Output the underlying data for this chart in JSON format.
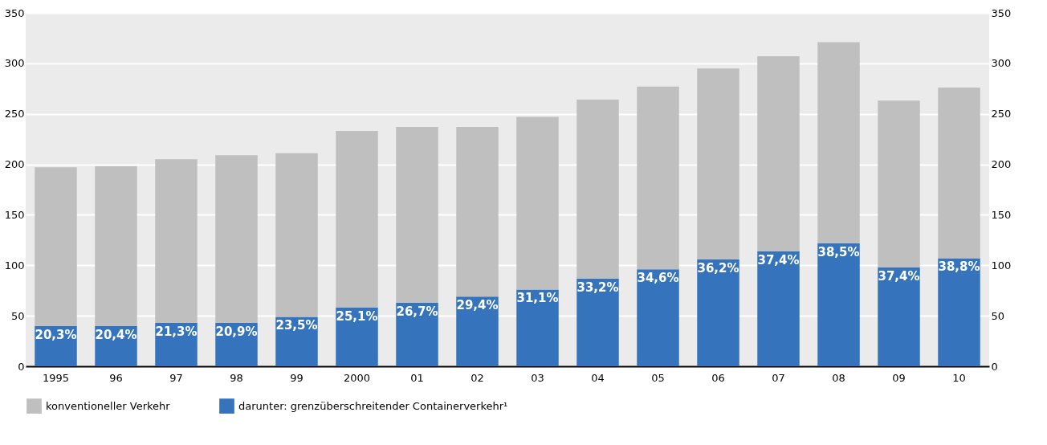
{
  "chart_data": {
    "type": "bar",
    "stacked": true,
    "categories": [
      "1995",
      "96",
      "97",
      "98",
      "99",
      "2000",
      "01",
      "02",
      "03",
      "04",
      "05",
      "06",
      "07",
      "08",
      "09",
      "10"
    ],
    "series": [
      {
        "name": "darunter: grenzüberschreitender Containerverkehr¹",
        "color": "#3574bc",
        "values": [
          40,
          40,
          43,
          43,
          49,
          58,
          63,
          69,
          76,
          87,
          96,
          106,
          114,
          122,
          98,
          107
        ]
      },
      {
        "name": "konventioneller Verkehr",
        "color": "#bfbfbf",
        "values": [
          157,
          158,
          162,
          166,
          162,
          175,
          174,
          168,
          171,
          177,
          181,
          189,
          193,
          199,
          165,
          169
        ]
      }
    ],
    "annotations": [
      {
        "text": "20,3%",
        "x": "1995",
        "y": 40
      },
      {
        "text": "20,4%",
        "x": "96",
        "y": 40
      },
      {
        "text": "21,3%",
        "x": "97",
        "y": 43
      },
      {
        "text": "20,9%",
        "x": "98",
        "y": 43
      },
      {
        "text": "23,5%",
        "x": "99",
        "y": 49
      },
      {
        "text": "25,1%",
        "x": "2000",
        "y": 58
      },
      {
        "text": "26,7%",
        "x": "01",
        "y": 63
      },
      {
        "text": "29,4%",
        "x": "02",
        "y": 69
      },
      {
        "text": "31,1%",
        "x": "03",
        "y": 76
      },
      {
        "text": "33,2%",
        "x": "04",
        "y": 87
      },
      {
        "text": "34,6%",
        "x": "05",
        "y": 96
      },
      {
        "text": "36,2%",
        "x": "06",
        "y": 106
      },
      {
        "text": "37,4%",
        "x": "07",
        "y": 114
      },
      {
        "text": "38,5%",
        "x": "08",
        "y": 122
      },
      {
        "text": "37,4%",
        "x": "09",
        "y": 98
      },
      {
        "text": "38,8%",
        "x": "10",
        "y": 107
      }
    ],
    "ylim": [
      0,
      350
    ],
    "yticks": [
      0,
      50,
      100,
      150,
      200,
      250,
      300,
      350
    ],
    "y2lim": [
      0,
      350
    ],
    "y2ticks": [
      0,
      50,
      100,
      150,
      200,
      250,
      300,
      350
    ],
    "grid": "y",
    "legend": "bottom left"
  }
}
